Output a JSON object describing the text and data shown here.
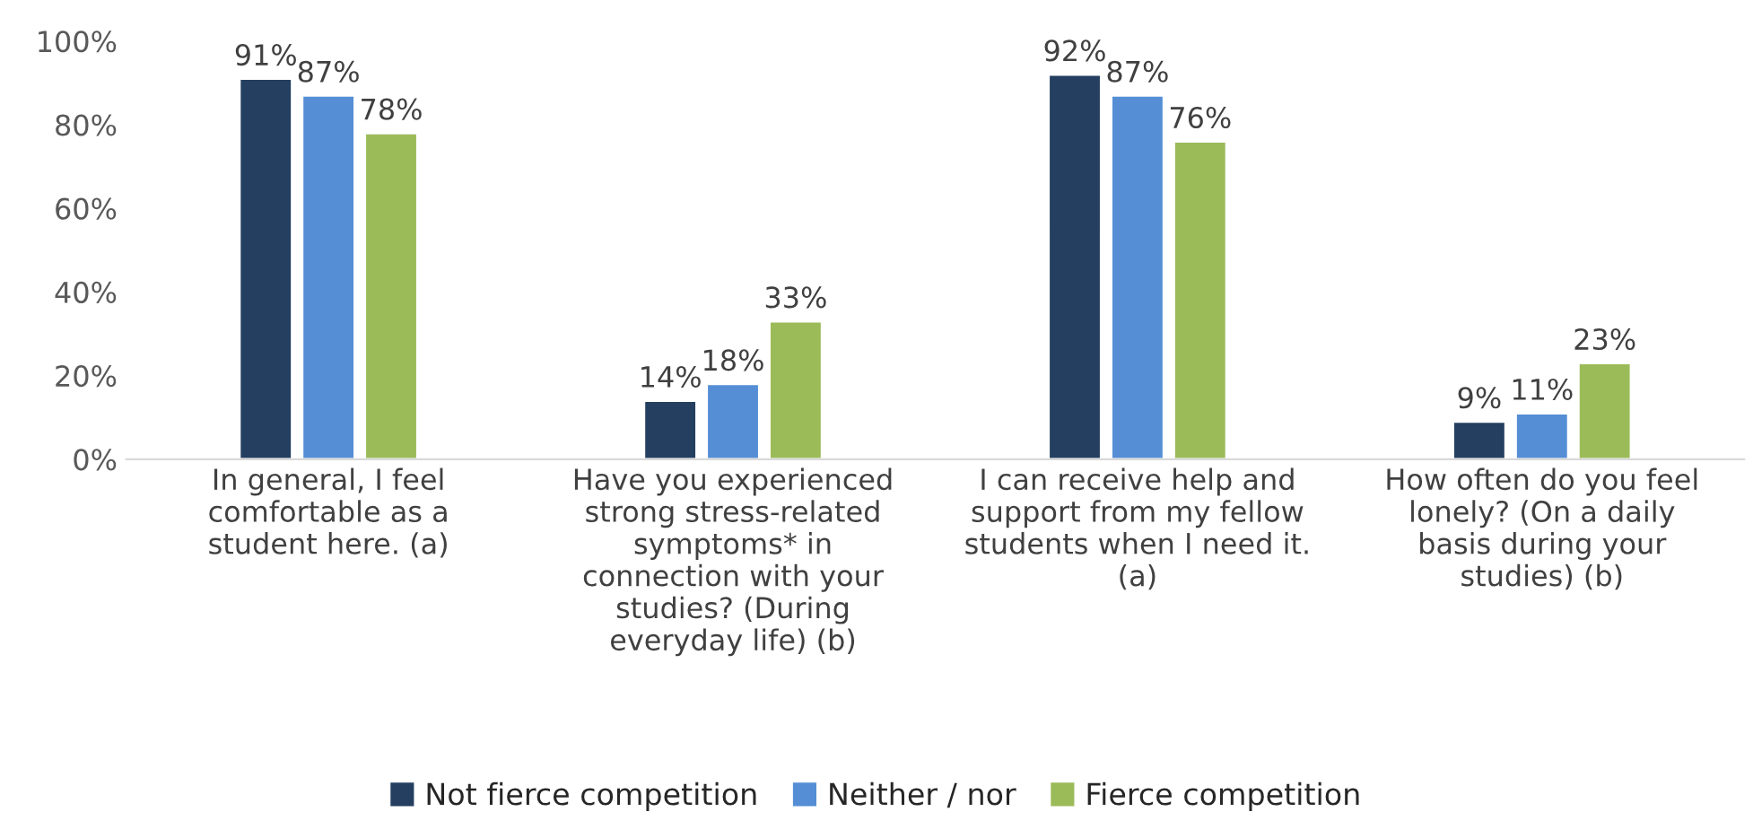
{
  "chart_data": {
    "type": "bar",
    "categories": [
      "In general, I feel\ncomfortable as a\nstudent here. (a)",
      "Have you experienced\nstrong stress-related\nsymptoms* in\nconnection with your\nstudies? (During\neveryday life) (b)",
      "I can receive help and\nsupport from my fellow\nstudents when I need it.\n(a)",
      "How often do you feel\nlonely? (On a daily\nbasis during your\nstudies) (b)"
    ],
    "series": [
      {
        "name": "Not fierce competition",
        "color": "#243f60",
        "values": [
          91,
          14,
          92,
          9
        ],
        "value_labels": [
          "91%",
          "14%",
          "92%",
          "9%"
        ]
      },
      {
        "name": "Neither / nor",
        "color": "#558ed5",
        "values": [
          87,
          18,
          87,
          11
        ],
        "value_labels": [
          "87%",
          "18%",
          "87%",
          "11%"
        ]
      },
      {
        "name": "Fierce competition",
        "color": "#9bbb59",
        "values": [
          78,
          33,
          76,
          23
        ],
        "value_labels": [
          "78%",
          "33%",
          "76%",
          "23%"
        ]
      }
    ],
    "ylim": [
      0,
      100
    ],
    "yticks": [
      {
        "value": 0,
        "label": "0%"
      },
      {
        "value": 20,
        "label": "20%"
      },
      {
        "value": 40,
        "label": "40%"
      },
      {
        "value": 60,
        "label": "60%"
      },
      {
        "value": 80,
        "label": "80%"
      },
      {
        "value": 100,
        "label": "100%"
      }
    ],
    "grid": false,
    "legend": "bottom"
  }
}
